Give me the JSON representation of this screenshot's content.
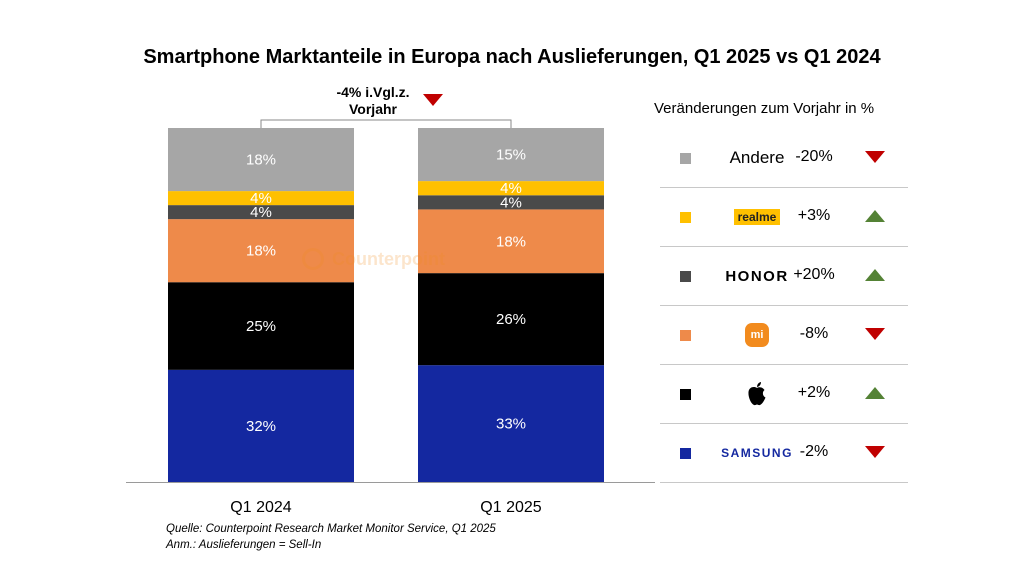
{
  "chart_data": {
    "type": "bar",
    "stacked": true,
    "title": "Smartphone Marktanteile in Europa nach Auslieferungen, Q1 2025 vs Q1 2024",
    "categories": [
      "Q1 2024",
      "Q1 2025"
    ],
    "ylim": [
      0,
      100
    ],
    "series": [
      {
        "name": "SAMSUNG",
        "values": [
          32,
          33
        ],
        "labels": [
          "32%",
          "33%"
        ],
        "color": "#1428a0"
      },
      {
        "name": "Apple",
        "values": [
          25,
          26
        ],
        "labels": [
          "25%",
          "26%"
        ],
        "color": "#000000"
      },
      {
        "name": "mi",
        "values": [
          18,
          18
        ],
        "labels": [
          "18%",
          "18%"
        ],
        "color": "#ee8a4a"
      },
      {
        "name": "HONOR",
        "values": [
          4,
          4
        ],
        "labels": [
          "4%",
          "4%"
        ],
        "color": "#4a4a4a"
      },
      {
        "name": "realme",
        "values": [
          4,
          4
        ],
        "labels": [
          "4%",
          "4%"
        ],
        "color": "#ffc000"
      },
      {
        "name": "Andere",
        "values": [
          18,
          15
        ],
        "labels": [
          "18%",
          "15%"
        ],
        "color": "#a6a6a6"
      }
    ],
    "total_change_label": "-4% i.Vgl.z. Vorjahr",
    "total_change_direction": "down"
  },
  "legend": {
    "title": "Veränderungen zum Vorjahr in %",
    "items": [
      {
        "brand": "Andere",
        "logo": "text",
        "change": "-20%",
        "direction": "down",
        "color": "#a6a6a6"
      },
      {
        "brand": "realme",
        "logo": "realme-logo",
        "change": "+3%",
        "direction": "up",
        "color": "#ffc000"
      },
      {
        "brand": "HONOR",
        "logo": "honor-logo",
        "change": "+20%",
        "direction": "up",
        "color": "#4a4a4a"
      },
      {
        "brand": "mi",
        "logo": "xiaomi-logo",
        "change": "-8%",
        "direction": "down",
        "color": "#ee8a4a"
      },
      {
        "brand": "Apple",
        "logo": "apple-logo",
        "change": "+2%",
        "direction": "up",
        "color": "#000000"
      },
      {
        "brand": "SAMSUNG",
        "logo": "samsung-logo",
        "change": "-2%",
        "direction": "down",
        "color": "#1428a0"
      }
    ]
  },
  "watermark": "Counterpoint",
  "source": {
    "line1": "Quelle: Counterpoint Research Market Monitor Service, Q1 2025",
    "line2": "Anm.: Auslieferungen = Sell-In"
  }
}
